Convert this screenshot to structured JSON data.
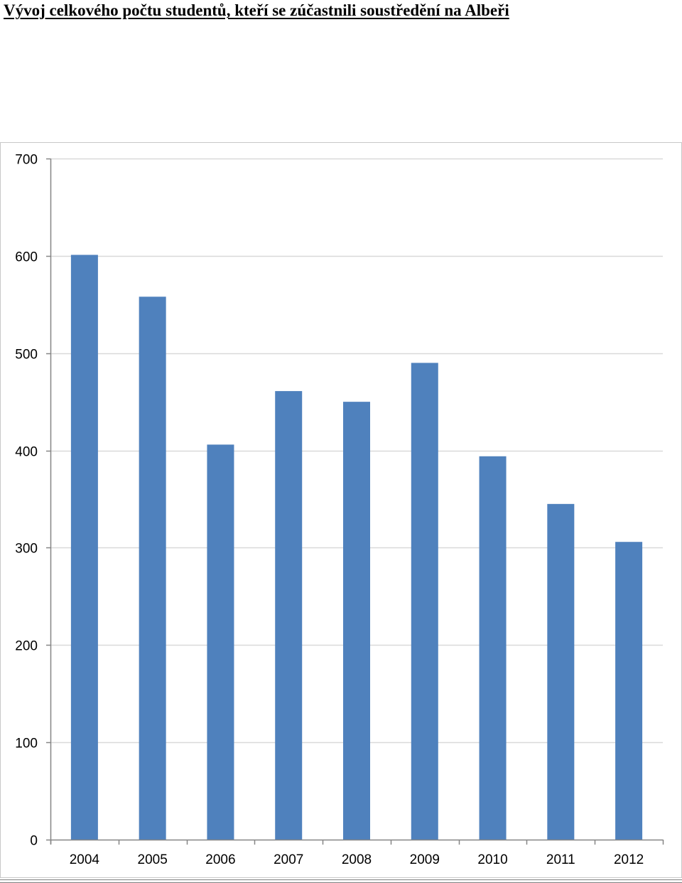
{
  "page": {
    "title": "Vývoj celkového počtu studentů, kteří se zúčastnili soustředění na Albeři"
  },
  "chart_data": {
    "type": "bar",
    "title": "",
    "xlabel": "",
    "ylabel": "",
    "categories": [
      "2004",
      "2005",
      "2006",
      "2007",
      "2008",
      "2009",
      "2010",
      "2011",
      "2012"
    ],
    "values": [
      601,
      558,
      406,
      461,
      450,
      490,
      394,
      345,
      306
    ],
    "ylim": [
      0,
      700
    ],
    "yticks": [
      0,
      100,
      200,
      300,
      400,
      500,
      600,
      700
    ],
    "grid": true,
    "legend": "none",
    "bar_color": "#4f81bd",
    "grid_color": "#d9d9d9",
    "axis_color": "#868686"
  }
}
